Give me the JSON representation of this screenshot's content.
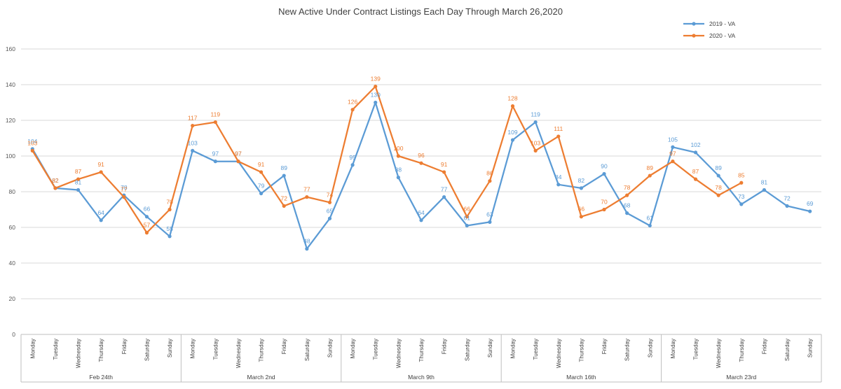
{
  "chart_data": {
    "type": "line",
    "title": "New Active Under Contract Listings Each Day Through March 26,2020",
    "xlabel": "",
    "ylabel": "",
    "ylim": [
      0,
      160
    ],
    "yticks": [
      0,
      20,
      40,
      60,
      80,
      100,
      120,
      140,
      160
    ],
    "grid": true,
    "legend_position": "top-right",
    "days": [
      "Monday",
      "Tuesday",
      "Wednesday",
      "Thursday",
      "Friday",
      "Saturday",
      "Sunday"
    ],
    "weeks": [
      "Feb 24th",
      "March 2nd",
      "March 9th",
      "March 16th",
      "March 23rd"
    ],
    "series": [
      {
        "name": "2019 - VA",
        "color": "#5b9bd5",
        "values": [
          104,
          82,
          81,
          64,
          78,
          66,
          55,
          103,
          97,
          97,
          79,
          89,
          48,
          65,
          95,
          130,
          88,
          64,
          77,
          61,
          63,
          109,
          119,
          84,
          82,
          90,
          68,
          61,
          105,
          102,
          89,
          73,
          81,
          72,
          69
        ]
      },
      {
        "name": "2020 - VA",
        "color": "#ed7d31",
        "values": [
          103,
          82,
          87,
          91,
          77,
          57,
          70,
          117,
          119,
          97,
          91,
          72,
          77,
          74,
          126,
          139,
          100,
          96,
          91,
          66,
          86,
          128,
          103,
          111,
          66,
          70,
          78,
          89,
          97,
          87,
          78,
          85,
          null,
          null,
          null
        ]
      }
    ]
  }
}
